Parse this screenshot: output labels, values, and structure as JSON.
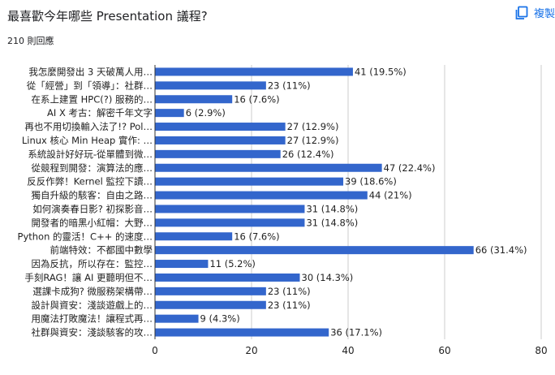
{
  "header": {
    "question": "最喜歡今年哪些 Presentation 議程?",
    "responses": "210 則回應",
    "copy_label": "複製",
    "copy_icon": "copy-icon"
  },
  "colors": {
    "bar": "#3366cc",
    "grid": "#cccccc",
    "axis": "#333333",
    "text": "#222222",
    "accent": "#1a73e8"
  },
  "chart_data": {
    "type": "bar",
    "orientation": "horizontal",
    "categories": [
      "我怎麼開發出 3 天破萬人用…",
      "從「經營」到「領導」：社群…",
      "在系上建置 HPC(?) 服務的…",
      "AI X 考古：解密千年文字",
      "再也不用切換輸入法了!? Pol…",
      "Linux 核心 Min Heap 實作: …",
      "系統設計好好玩-從單體到微…",
      "從競程到開發：演算法的應…",
      "反反作弊！Kernel 監控下讀…",
      "獨自升級的駭客：自由之路…",
      "如何演奏春日影? 初探影音…",
      "開發者的暗黑小紅帽：大野…",
      "Python 的靈活！C++ 的速度…",
      "前端特效：不都國中數學",
      "因為反抗，所以存在：監控…",
      "手刻RAG！讓 AI 更聽明但不…",
      "選課卡成狗? 微服務架構帶…",
      "設計與資安：淺談遊戲上的…",
      "用魔法打敗魔法！讓程式再…",
      "社群與資安：淺談駭客的攻…"
    ],
    "values": [
      41,
      23,
      16,
      6,
      27,
      27,
      26,
      47,
      39,
      44,
      31,
      31,
      16,
      66,
      11,
      30,
      23,
      23,
      9,
      36
    ],
    "data_labels": [
      "41 (19.5%)",
      "23 (11%)",
      "16 (7.6%)",
      "6 (2.9%)",
      "27 (12.9%)",
      "27 (12.9%)",
      "26 (12.4%)",
      "47 (22.4%)",
      "39 (18.6%)",
      "44 (21%)",
      "31 (14.8%)",
      "31 (14.8%)",
      "16 (7.6%)",
      "66 (31.4%)",
      "11 (5.2%)",
      "30 (14.3%)",
      "23 (11%)",
      "23 (11%)",
      "9 (4.3%)",
      "36 (17.1%)"
    ],
    "xlim": [
      0,
      80
    ],
    "xticks": [
      0,
      20,
      40,
      60,
      80
    ],
    "grid": true,
    "xlabel": "",
    "ylabel": ""
  }
}
